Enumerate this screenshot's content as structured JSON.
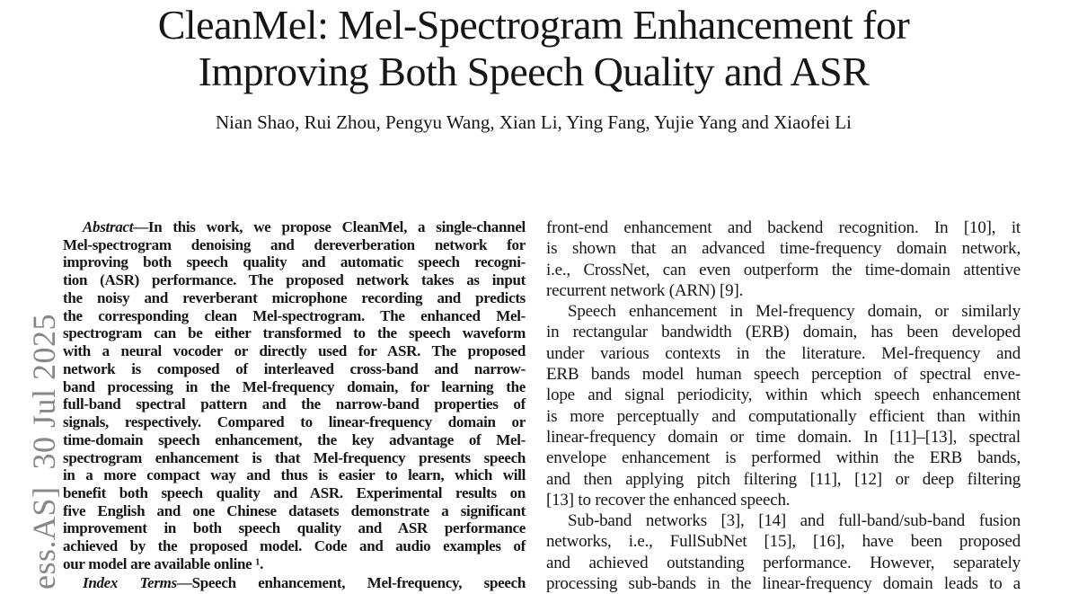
{
  "header": {
    "title_line1": "CleanMel: Mel-Spectrogram Enhancement for",
    "title_line2": "Improving Both Speech Quality and ASR",
    "authors": "Nian Shao, Rui Zhou, Pengyu Wang, Xian Li, Ying Fang, Yujie Yang and Xiaofei Li"
  },
  "watermark": {
    "text": "ess.AS]  30 Jul 2025",
    "color": "#878787"
  },
  "abstract": {
    "label": "Abstract",
    "first_line_rest": "—In this work, we propose CleanMel, a single-channel",
    "paragraphs": [
      {
        "indent": false,
        "open": false,
        "lines": [
          "Mel-spectrogram denoising and dereverberation network for",
          "improving both speech quality and automatic speech recogni-",
          "tion (ASR) performance. The proposed network takes as input",
          "the noisy and reverberant microphone recording and predicts",
          "the corresponding clean Mel-spectrogram. The enhanced Mel-",
          "spectrogram can be either transformed to the speech waveform",
          "with a neural vocoder or directly used for ASR. The proposed",
          "network is composed of interleaved cross-band and narrow-",
          "band processing in the Mel-frequency domain, for learning the",
          "full-band spectral pattern and the narrow-band properties of",
          "signals, respectively. Compared to linear-frequency domain or",
          "time-domain speech enhancement, the key advantage of Mel-",
          "spectrogram enhancement is that Mel-frequency presents speech",
          "in a more compact way and thus is easier to learn, which will",
          "benefit both speech quality and ASR. Experimental results on",
          "five English and one Chinese datasets demonstrate a significant",
          "improvement in both speech quality and ASR performance",
          "achieved by the proposed model. Code and audio examples of",
          "our model are available online ¹."
        ]
      }
    ],
    "index_terms_label": "Index Terms",
    "index_terms_rest": "—Speech enhancement, Mel-frequency, speech"
  },
  "column2": {
    "paragraphs": [
      {
        "indent": false,
        "open": false,
        "lines": [
          "front-end enhancement and backend recognition. In [10], it",
          "is shown that an advanced time-frequency domain network,",
          "i.e., CrossNet, can even outperform the time-domain attentive",
          "recurrent network (ARN) [9]."
        ]
      },
      {
        "indent": true,
        "open": false,
        "lines": [
          "Speech enhancement in Mel-frequency domain, or similarly",
          "in rectangular bandwidth (ERB) domain, has been developed",
          "under various contexts in the literature. Mel-frequency and",
          "ERB bands model human speech perception of spectral enve-",
          "lope and signal periodicity, within which speech enhancement",
          "is more perceptually and computationally efficient than within",
          "linear-frequency domain or time domain. In [11]–[13], spectral",
          "envelope enhancement is performed within the ERB bands,",
          "and then applying pitch filtering [11], [12] or deep filtering",
          "[13] to recover the enhanced speech."
        ]
      },
      {
        "indent": true,
        "open": true,
        "lines": [
          "Sub-band networks [3], [14] and full-band/sub-band fusion",
          "networks, i.e., FullSubNet [15], [16], have been proposed",
          "and achieved outstanding performance. However, separately",
          "processing sub-bands in the linear-frequency domain leads to a"
        ]
      }
    ]
  }
}
